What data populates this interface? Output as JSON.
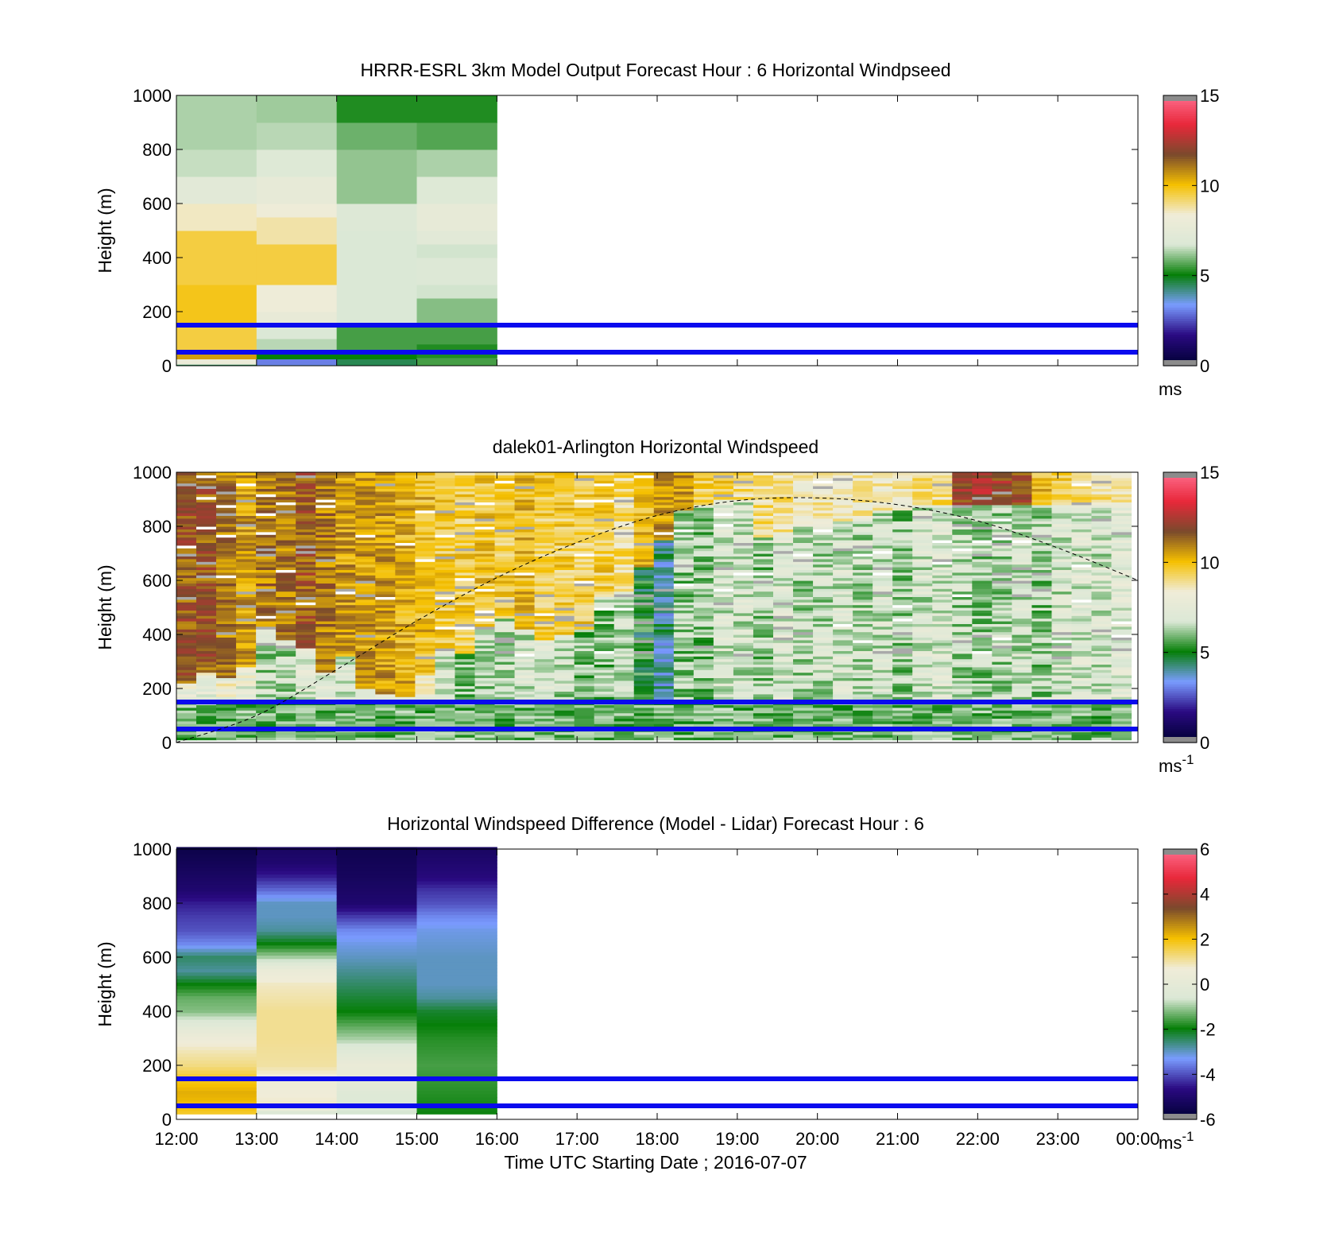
{
  "figure": {
    "xlabel": "Time UTC  Starting Date ; 2016-07-07",
    "xtick_labels": [
      "12:00",
      "13:00",
      "14:00",
      "15:00",
      "16:00",
      "17:00",
      "18:00",
      "19:00",
      "20:00",
      "21:00",
      "22:00",
      "23:00",
      "00:00"
    ]
  },
  "colormap_anchors": [
    "#000033",
    "#2a0a82",
    "#7a9cff",
    "#067f08",
    "#dbe8d6",
    "#f0ecd8",
    "#f5c000",
    "#7a4a2c",
    "#e8283a",
    "#ff6f90"
  ],
  "chart_data": [
    {
      "id": "model",
      "type": "heatmap",
      "title": "HRRR-ESRL 3km Model Output   Forecast Hour : 6 Horizontal Windpseed",
      "ylabel": "Height (m)",
      "ylim": [
        0,
        1000
      ],
      "yticks": [
        "0",
        "200",
        "400",
        "600",
        "800",
        "1000"
      ],
      "x_range": [
        "12:00",
        "00:00"
      ],
      "colorbar": {
        "ticks": [
          "0",
          "5",
          "10",
          "15"
        ],
        "range": [
          0,
          15
        ],
        "unit": "ms"
      },
      "reference_lines_m": [
        50,
        150
      ],
      "columns": [
        {
          "start": "12:00",
          "end": "13:00",
          "cells": [
            [
              0,
              5,
              4.5
            ],
            [
              5,
              8,
              7
            ],
            [
              8,
              25,
              8
            ],
            [
              25,
              45,
              10.5
            ],
            [
              45,
              60,
              8
            ],
            [
              60,
              150,
              9.5
            ],
            [
              150,
              300,
              9.8
            ],
            [
              300,
              500,
              9.5
            ],
            [
              500,
              600,
              8.5
            ],
            [
              600,
              700,
              7.2
            ],
            [
              700,
              800,
              6.5
            ],
            [
              800,
              900,
              6.3
            ],
            [
              900,
              1000,
              6.3
            ]
          ]
        },
        {
          "start": "13:00",
          "end": "14:00",
          "cells": [
            [
              0,
              5,
              3.5
            ],
            [
              5,
              25,
              3
            ],
            [
              25,
              45,
              5
            ],
            [
              45,
              60,
              7
            ],
            [
              60,
              100,
              6.4
            ],
            [
              100,
              150,
              6.7
            ],
            [
              150,
              200,
              7.7
            ],
            [
              200,
              300,
              8.2
            ],
            [
              300,
              450,
              9.5
            ],
            [
              450,
              550,
              8.7
            ],
            [
              550,
              600,
              8.2
            ],
            [
              600,
              700,
              7.6
            ],
            [
              700,
              800,
              6.9
            ],
            [
              800,
              900,
              6.4
            ],
            [
              900,
              1000,
              6.2
            ]
          ]
        },
        {
          "start": "14:00",
          "end": "15:00",
          "cells": [
            [
              0,
              5,
              4.5
            ],
            [
              5,
              25,
              4.5
            ],
            [
              25,
              50,
              5
            ],
            [
              50,
              150,
              5.5
            ],
            [
              150,
              500,
              6.7
            ],
            [
              500,
              600,
              6.8
            ],
            [
              600,
              800,
              6.1
            ],
            [
              800,
              900,
              5.8
            ],
            [
              900,
              1000,
              5.2
            ]
          ]
        },
        {
          "start": "15:00",
          "end": "16:00",
          "cells": [
            [
              0,
              5,
              5.5
            ],
            [
              5,
              30,
              5.5
            ],
            [
              30,
              80,
              5.2
            ],
            [
              80,
              150,
              5.5
            ],
            [
              150,
              250,
              6
            ],
            [
              250,
              300,
              6.6
            ],
            [
              300,
              400,
              6.8
            ],
            [
              400,
              450,
              6.6
            ],
            [
              450,
              500,
              7.2
            ],
            [
              500,
              600,
              7.6
            ],
            [
              600,
              700,
              6.9
            ],
            [
              700,
              800,
              6.3
            ],
            [
              800,
              900,
              5.6
            ],
            [
              900,
              1000,
              5.2
            ]
          ]
        }
      ],
      "overlay_curve": null
    },
    {
      "id": "lidar",
      "type": "heatmap",
      "title": "dalek01-Arlington  Horizontal Windspeed",
      "ylabel": "Height (m)",
      "ylim": [
        0,
        1000
      ],
      "yticks": [
        "0",
        "200",
        "400",
        "600",
        "800",
        "1000"
      ],
      "x_range": [
        "12:00",
        "00:00"
      ],
      "colorbar": {
        "ticks": [
          "0",
          "5",
          "10",
          "15"
        ],
        "range": [
          0,
          15
        ],
        "unit": "ms",
        "unit_exp": "-1"
      },
      "reference_lines_m": [
        50,
        150
      ],
      "lidar_profiles": {
        "x_start": "12:00",
        "x_end": "23:55",
        "n_profiles": 48,
        "low_boundary_m": [
          220,
          260,
          240,
          280,
          420,
          380,
          350,
          260,
          320,
          200,
          180,
          170,
          250,
          340,
          330,
          420,
          460,
          420,
          380,
          400,
          420,
          540,
          560,
          650,
          750,
          860,
          880,
          900,
          900,
          760,
          780,
          800,
          800,
          820,
          820,
          860,
          860,
          880,
          880,
          880,
          880,
          880,
          880,
          880,
          880,
          880,
          880,
          880
        ],
        "low_speed": [
          7.5,
          7.5,
          7.8,
          7.5,
          6.5,
          6.5,
          7.2,
          7.4,
          6.8,
          7.5,
          7.5,
          8.0,
          7.8,
          6.5,
          6.0,
          6.2,
          6.5,
          6.8,
          7.0,
          6.5,
          6.0,
          6.0,
          6.5,
          5.0,
          4.0,
          6.2,
          6.0,
          6.8,
          6.8,
          6.2,
          7.0,
          6.5,
          6.6,
          6.8,
          6.5,
          6.8,
          6.2,
          6.8,
          7.0,
          6.4,
          6.2,
          6.4,
          6.6,
          6.2,
          6.8,
          7.0,
          6.8,
          7.2
        ],
        "high_speed": [
          11.5,
          11.5,
          11,
          10.5,
          11,
          11,
          11.5,
          11,
          10.5,
          10.5,
          10.5,
          10.2,
          10,
          9.5,
          9.5,
          9.8,
          9.5,
          10,
          9.5,
          9.5,
          9.5,
          9.5,
          9,
          10,
          10.5,
          10.5,
          9.5,
          9.5,
          9,
          9,
          9,
          8.5,
          8.5,
          8.5,
          8.5,
          8.5,
          8.5,
          9,
          9,
          12,
          12.5,
          12,
          11.5,
          10,
          9.5,
          9.0,
          8.8,
          8.5
        ]
      },
      "overlay_curve": {
        "style": "dashed",
        "points": [
          [
            "12:00",
            0
          ],
          [
            "13:00",
            100
          ],
          [
            "14:00",
            270
          ],
          [
            "15:00",
            450
          ],
          [
            "16:00",
            610
          ],
          [
            "17:00",
            740
          ],
          [
            "18:00",
            840
          ],
          [
            "19:00",
            895
          ],
          [
            "20:00",
            905
          ],
          [
            "21:00",
            880
          ],
          [
            "22:00",
            820
          ],
          [
            "23:00",
            720
          ],
          [
            "00:00",
            600
          ]
        ]
      }
    },
    {
      "id": "diff",
      "type": "heatmap",
      "title": "Horizontal Windspeed Difference (Model - Lidar) Forecast Hour : 6",
      "ylabel": "Height (m)",
      "ylim": [
        0,
        1000
      ],
      "yticks": [
        "0",
        "200",
        "400",
        "600",
        "800",
        "1000"
      ],
      "x_range": [
        "12:00",
        "00:00"
      ],
      "colorbar": {
        "ticks": [
          "-6",
          "-4",
          "-2",
          "0",
          "2",
          "4",
          "6"
        ],
        "range": [
          -6,
          6
        ],
        "unit": "ms",
        "unit_exp": "-1"
      },
      "reference_lines_m": [
        50,
        150
      ],
      "columns": [
        {
          "start": "12:00",
          "end": "13:00",
          "profile": [
            [
              0,
              1.5
            ],
            [
              50,
              2
            ],
            [
              100,
              2.2
            ],
            [
              150,
              1.8
            ],
            [
              200,
              1.2
            ],
            [
              250,
              0.9
            ],
            [
              300,
              0.5
            ],
            [
              350,
              -0.3
            ],
            [
              400,
              -1.2
            ],
            [
              450,
              -1.4
            ],
            [
              500,
              -2
            ],
            [
              550,
              -2.8
            ],
            [
              600,
              -2.5
            ],
            [
              650,
              -3.5
            ],
            [
              700,
              -4
            ],
            [
              750,
              -4.2
            ],
            [
              800,
              -4.5
            ],
            [
              850,
              -5
            ],
            [
              900,
              -5.2
            ],
            [
              950,
              -5.4
            ],
            [
              1000,
              -5.6
            ]
          ]
        },
        {
          "start": "13:00",
          "end": "14:00",
          "profile": [
            [
              0,
              -2
            ],
            [
              50,
              0.8
            ],
            [
              100,
              0.6
            ],
            [
              150,
              0.5
            ],
            [
              200,
              1
            ],
            [
              300,
              1.1
            ],
            [
              400,
              1.1
            ],
            [
              500,
              0.8
            ],
            [
              550,
              0.3
            ],
            [
              600,
              -1
            ],
            [
              650,
              -2
            ],
            [
              700,
              -2.8
            ],
            [
              750,
              -3
            ],
            [
              800,
              -3
            ],
            [
              850,
              -3.8
            ],
            [
              900,
              -4.5
            ],
            [
              950,
              -5
            ],
            [
              1000,
              -5.2
            ]
          ]
        },
        {
          "start": "14:00",
          "end": "15:00",
          "profile": [
            [
              0,
              -0.8
            ],
            [
              50,
              -0.6
            ],
            [
              100,
              -0.4
            ],
            [
              150,
              0
            ],
            [
              200,
              0.3
            ],
            [
              250,
              -0.3
            ],
            [
              300,
              -1
            ],
            [
              400,
              -2
            ],
            [
              500,
              -2.5
            ],
            [
              600,
              -3
            ],
            [
              650,
              -3.2
            ],
            [
              700,
              -3.5
            ],
            [
              750,
              -4.2
            ],
            [
              800,
              -5
            ],
            [
              900,
              -5.3
            ],
            [
              1000,
              -5.5
            ]
          ]
        },
        {
          "start": "15:00",
          "end": "16:00",
          "profile": [
            [
              0,
              -2
            ],
            [
              100,
              -1.8
            ],
            [
              200,
              -1.6
            ],
            [
              300,
              -1.8
            ],
            [
              400,
              -2.2
            ],
            [
              450,
              -2.8
            ],
            [
              500,
              -3
            ],
            [
              600,
              -3
            ],
            [
              700,
              -3.2
            ],
            [
              750,
              -3.5
            ],
            [
              800,
              -4
            ],
            [
              850,
              -4.3
            ],
            [
              900,
              -4.8
            ],
            [
              1000,
              -5.2
            ]
          ]
        }
      ],
      "overlay_curve": null
    }
  ]
}
